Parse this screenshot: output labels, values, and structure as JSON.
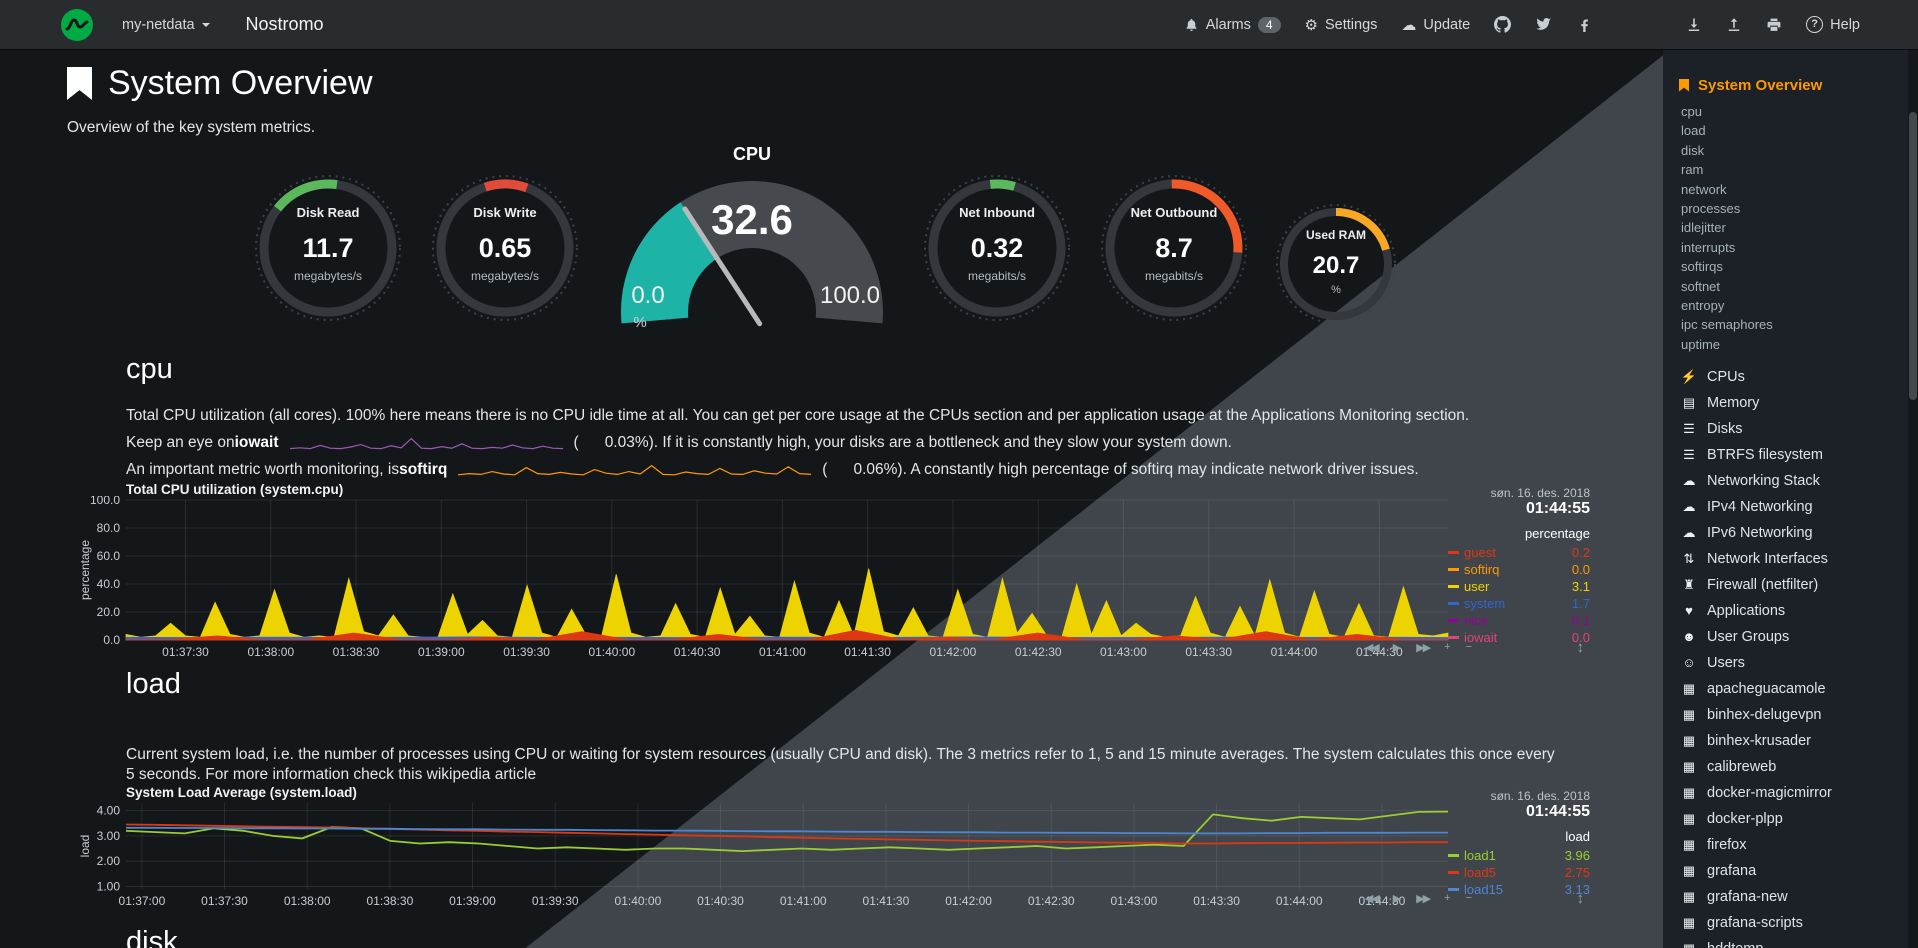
{
  "navbar": {
    "menu": "my-netdata",
    "hostname": "Nostromo",
    "alarms_label": "Alarms",
    "alarms_badge": "4",
    "settings_label": "Settings",
    "update_label": "Update",
    "help_label": "Help"
  },
  "glyphs": {
    "gear": "⚙",
    "cloud": "☁",
    "question": "?"
  },
  "page": {
    "title": "System Overview",
    "subtitle": "Overview of the key system metrics."
  },
  "gauges": [
    {
      "id": "disk_read",
      "label": "Disk Read",
      "value": "11.7",
      "unit": "megabytes/s",
      "color": "#5CB85C",
      "arc_start": -52,
      "arc_end": 8
    },
    {
      "id": "disk_write",
      "label": "Disk Write",
      "value": "0.65",
      "unit": "megabytes/s",
      "color": "#E04B3A",
      "arc_start": -18,
      "arc_end": 20
    },
    {
      "id": "net_inbound",
      "label": "Net Inbound",
      "value": "0.32",
      "unit": "megabits/s",
      "color": "#5CB85C",
      "arc_start": -6,
      "arc_end": 16
    },
    {
      "id": "net_outbound",
      "label": "Net Outbound",
      "value": "8.7",
      "unit": "megabits/s",
      "color": "#EF5A28",
      "arc_start": -2,
      "arc_end": 94
    },
    {
      "id": "used_ram",
      "label": "Used RAM",
      "value": "20.7",
      "unit": "%",
      "color": "#F9A825",
      "arc_start": 0,
      "arc_end": 74
    }
  ],
  "cpu_gauge": {
    "title": "CPU",
    "value": "32.6",
    "min": "0.0",
    "max": "100.0",
    "unit": "%",
    "percent": 32.6,
    "fill_color": "#1DB3A7",
    "ring_color": "#46494E",
    "needle_color": "#B6BABD"
  },
  "sections": {
    "cpu": {
      "heading": "cpu",
      "desc": "Total CPU utilization (all cores). 100% here means there is no CPU idle time at all. You can get per core usage at the CPUs section and per application usage at the Applications Monitoring section.",
      "iowait": {
        "prefix": "Keep an eye on ",
        "keyword": "iowait",
        "open": "(",
        "value": "0.03%",
        "close_suffix": "). If it is constantly high, your disks are a bottleneck and they slow your system down."
      },
      "softirq": {
        "prefix": "An important metric worth monitoring, is ",
        "keyword": "softirq",
        "open": "(",
        "value": "0.06%",
        "close_suffix": "). A constantly high percentage of softirq may indicate network driver issues."
      }
    },
    "load": {
      "heading": "load",
      "desc": "Current system load, i.e. the number of processes using CPU or waiting for system resources (usually CPU and disk). The 3 metrics refer to 1, 5 and 15 minute averages. The system calculates this once every 5 seconds. For more information check this wikipedia article"
    },
    "disk": {
      "heading": "disk"
    }
  },
  "toolbar": {
    "buttons": [
      {
        "name": "pan-backward",
        "glyph": "◀◀"
      },
      {
        "name": "play",
        "glyph": "▶"
      },
      {
        "name": "pan-forward",
        "glyph": "▶▶"
      },
      {
        "name": "zoom-in",
        "glyph": "+"
      },
      {
        "name": "zoom-out",
        "glyph": "−"
      }
    ],
    "resize_glyph": "↕"
  },
  "chart_data": [
    {
      "id": "cpu",
      "type": "area",
      "title": "Total CPU utilization (system.cpu)",
      "date": "søn. 16. des. 2018",
      "time": "01:44:55",
      "units_label": "percentage",
      "ylabel": "percentage",
      "ylim": [
        0,
        100
      ],
      "yticks": [
        0,
        20,
        40,
        60,
        80,
        100
      ],
      "ytick_labels": [
        "0.0",
        "20.0",
        "40.0",
        "60.0",
        "80.0",
        "100.0"
      ],
      "xtick_labels": [
        "01:37:30",
        "01:38:00",
        "01:38:30",
        "01:39:00",
        "01:39:30",
        "01:40:00",
        "01:40:30",
        "01:41:00",
        "01:41:30",
        "01:42:00",
        "01:42:30",
        "01:43:00",
        "01:43:30",
        "01:44:00",
        "01:44:30"
      ],
      "xtick_start": 0.045,
      "xtick_end": 0.948,
      "legend": [
        {
          "name": "guest",
          "value": "0.2",
          "color": "#DC3912"
        },
        {
          "name": "softirq",
          "value": "0.0",
          "color": "#FF9900"
        },
        {
          "name": "user",
          "value": "3.1",
          "color": "#EDD400"
        },
        {
          "name": "system",
          "value": "1.7",
          "color": "#3366CC"
        },
        {
          "name": "nice",
          "value": "0.1",
          "color": "#990099"
        },
        {
          "name": "iowait",
          "value": "0.0",
          "color": "#DD4477"
        }
      ],
      "series": [
        {
          "name": "user",
          "color": "#EDD400",
          "fill": true,
          "values": [
            4,
            2,
            3,
            12,
            3,
            2,
            27,
            4,
            2,
            3,
            36,
            5,
            2,
            3,
            2,
            44,
            6,
            3,
            18,
            3,
            2,
            2,
            33,
            4,
            14,
            3,
            2,
            39,
            5,
            2,
            22,
            3,
            2,
            47,
            5,
            2,
            3,
            26,
            4,
            2,
            37,
            4,
            17,
            3,
            2,
            42,
            5,
            2,
            28,
            3,
            51,
            6,
            3,
            23,
            3,
            2,
            36,
            4,
            2,
            44,
            5,
            19,
            3,
            2,
            40,
            4,
            28,
            3,
            12,
            4,
            2,
            3,
            31,
            5,
            2,
            24,
            3,
            43,
            5,
            2,
            35,
            4,
            2,
            26,
            3,
            2,
            38,
            4,
            3,
            5
          ]
        },
        {
          "name": "system",
          "color": "#3366CC",
          "fill": true,
          "values": [
            2,
            1.8,
            2.1,
            1.9,
            2,
            2.2,
            1.9,
            2,
            1.8,
            2.1,
            2,
            1.9,
            2.2,
            2,
            1.8,
            2,
            2.1,
            1.9,
            2,
            1.8
          ]
        },
        {
          "name": "guest",
          "color": "#DC3912",
          "fill": true,
          "values": [
            0.3,
            0.4,
            3,
            0.3,
            0.4,
            5,
            0.4,
            0.3,
            2,
            0.4,
            6,
            0.3,
            0.5,
            4,
            0.3,
            0.4,
            7,
            0.4,
            2,
            0.3,
            5,
            0.4,
            0.3,
            3,
            0.5,
            6,
            0.3,
            4,
            0.4,
            0.3
          ]
        }
      ]
    },
    {
      "id": "load",
      "type": "line",
      "title": "System Load Average (system.load)",
      "date": "søn. 16. des. 2018",
      "time": "01:44:55",
      "units_label": "load",
      "ylabel": "load",
      "ylim": [
        0.9,
        4.3
      ],
      "yticks": [
        1,
        2,
        3,
        4
      ],
      "ytick_labels": [
        "1.00",
        "2.00",
        "3.00",
        "4.00"
      ],
      "xtick_labels": [
        "01:37:00",
        "01:37:30",
        "01:38:00",
        "01:38:30",
        "01:39:00",
        "01:39:30",
        "01:40:00",
        "01:40:30",
        "01:41:00",
        "01:41:30",
        "01:42:00",
        "01:42:30",
        "01:43:00",
        "01:43:30",
        "01:44:00",
        "01:44:30"
      ],
      "xtick_start": 0.012,
      "xtick_end": 0.95,
      "legend": [
        {
          "name": "load1",
          "value": "3.96",
          "color": "#9ACD32"
        },
        {
          "name": "load5",
          "value": "2.75",
          "color": "#DC3912"
        },
        {
          "name": "load15",
          "value": "3.13",
          "color": "#4D86D2"
        }
      ],
      "series": [
        {
          "name": "load1",
          "color": "#9ACD32",
          "width": 1.8,
          "values": [
            3.2,
            3.15,
            3.1,
            3.3,
            3.2,
            3.0,
            2.9,
            3.35,
            3.3,
            2.8,
            2.7,
            2.75,
            2.7,
            2.6,
            2.5,
            2.55,
            2.5,
            2.45,
            2.5,
            2.5,
            2.45,
            2.4,
            2.45,
            2.5,
            2.45,
            2.5,
            2.55,
            2.5,
            2.45,
            2.5,
            2.55,
            2.6,
            2.5,
            2.55,
            2.6,
            2.65,
            2.6,
            3.85,
            3.7,
            3.6,
            3.75,
            3.7,
            3.65,
            3.8,
            3.95,
            3.96
          ]
        },
        {
          "name": "load5",
          "color": "#DC3912",
          "width": 1.8,
          "values": [
            3.45,
            3.44,
            3.42,
            3.4,
            3.38,
            3.36,
            3.35,
            3.33,
            3.3,
            3.28,
            3.25,
            3.22,
            3.2,
            3.17,
            3.15,
            3.12,
            3.1,
            3.07,
            3.05,
            3.02,
            3.0,
            2.98,
            2.95,
            2.93,
            2.9,
            2.88,
            2.86,
            2.84,
            2.82,
            2.8,
            2.79,
            2.77,
            2.76,
            2.74,
            2.73,
            2.72,
            2.7,
            2.7,
            2.71,
            2.72,
            2.72,
            2.73,
            2.74,
            2.74,
            2.75,
            2.75
          ]
        },
        {
          "name": "load15",
          "color": "#4D86D2",
          "width": 1.8,
          "values": [
            3.32,
            3.32,
            3.31,
            3.31,
            3.3,
            3.3,
            3.29,
            3.29,
            3.28,
            3.28,
            3.27,
            3.26,
            3.26,
            3.25,
            3.24,
            3.24,
            3.23,
            3.22,
            3.21,
            3.21,
            3.2,
            3.19,
            3.18,
            3.18,
            3.17,
            3.16,
            3.16,
            3.15,
            3.14,
            3.14,
            3.13,
            3.13,
            3.12,
            3.12,
            3.11,
            3.11,
            3.1,
            3.1,
            3.1,
            3.11,
            3.11,
            3.12,
            3.12,
            3.12,
            3.13,
            3.13
          ]
        }
      ]
    },
    {
      "id": "spark_iowait",
      "type": "line",
      "ylim": [
        0,
        3
      ],
      "series": [
        {
          "name": "iowait",
          "color": "#9B59B6",
          "width": 1.2,
          "values": [
            0.1,
            0.3,
            0.1,
            0.9,
            0.2,
            0.1,
            0.5,
            1.1,
            0.2,
            0.1,
            0.8,
            0.3,
            2.6,
            0.2,
            0.1,
            0.6,
            0.2,
            1.3,
            0.2,
            0.1,
            0.4,
            0.2,
            1.0,
            0.3,
            0.1,
            0.7,
            0.2,
            0.1
          ]
        }
      ]
    },
    {
      "id": "spark_softirq",
      "type": "line",
      "ylim": [
        0,
        3
      ],
      "series": [
        {
          "name": "softirq",
          "color": "#FF9900",
          "width": 1.2,
          "values": [
            0.3,
            0.6,
            0.4,
            1.1,
            0.5,
            0.3,
            2.1,
            0.6,
            0.4,
            0.9,
            0.5,
            0.3,
            1.6,
            0.7,
            0.4,
            1.1,
            0.5,
            2.6,
            0.4,
            0.3,
            1.0,
            0.6,
            0.4,
            1.9,
            0.5,
            0.4,
            1.3,
            0.7,
            0.5,
            2.3,
            0.6,
            0.4
          ]
        }
      ]
    }
  ],
  "sidebar": {
    "active": {
      "label": "System Overview"
    },
    "subitems": [
      "cpu",
      "load",
      "disk",
      "ram",
      "network",
      "processes",
      "idlejitter",
      "interrupts",
      "softirqs",
      "softnet",
      "entropy",
      "ipc semaphores",
      "uptime"
    ],
    "sections": [
      {
        "label": "CPUs",
        "icon": "bolt"
      },
      {
        "label": "Memory",
        "icon": "memory"
      },
      {
        "label": "Disks",
        "icon": "disks"
      },
      {
        "label": "BTRFS filesystem",
        "icon": "disks"
      },
      {
        "label": "Networking Stack",
        "icon": "cloud"
      },
      {
        "label": "IPv4 Networking",
        "icon": "cloud"
      },
      {
        "label": "IPv6 Networking",
        "icon": "cloud"
      },
      {
        "label": "Network Interfaces",
        "icon": "interfaces"
      },
      {
        "label": "Firewall (netfilter)",
        "icon": "firewall"
      },
      {
        "label": "Applications",
        "icon": "applications"
      },
      {
        "label": "User Groups",
        "icon": "user-groups"
      },
      {
        "label": "Users",
        "icon": "users"
      },
      {
        "label": "apacheguacamole",
        "icon": "container"
      },
      {
        "label": "binhex-delugevpn",
        "icon": "container"
      },
      {
        "label": "binhex-krusader",
        "icon": "container"
      },
      {
        "label": "calibreweb",
        "icon": "container"
      },
      {
        "label": "docker-magicmirror",
        "icon": "container"
      },
      {
        "label": "docker-plpp",
        "icon": "container"
      },
      {
        "label": "firefox",
        "icon": "container"
      },
      {
        "label": "grafana",
        "icon": "container"
      },
      {
        "label": "grafana-new",
        "icon": "container"
      },
      {
        "label": "grafana-scripts",
        "icon": "container"
      },
      {
        "label": "hddtemp",
        "icon": "container"
      }
    ]
  }
}
